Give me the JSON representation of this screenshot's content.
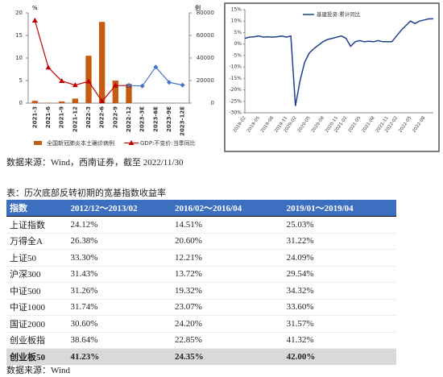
{
  "chart_data": [
    {
      "type": "bar-line",
      "ylabel": "%",
      "y2label": "例",
      "categories": [
        "2021-3",
        "2021-6",
        "2021-9",
        "2021-12",
        "2022-3",
        "2022-6",
        "2022-9",
        "2022-12",
        "2023-3E",
        "2023-6E",
        "2023-9E",
        "2023-12E"
      ],
      "ylim": [
        0,
        20
      ],
      "yticks": [
        0,
        5,
        10,
        15,
        20
      ],
      "y2lim": [
        0,
        80000
      ],
      "y2ticks": [
        0,
        20000,
        40000,
        60000,
        80000
      ],
      "series": [
        {
          "name": "全国新冠肺炎本土确诊病例",
          "color": "#c55a11",
          "kind": "bar",
          "axis": "y2",
          "values": [
            2000,
            300,
            1500,
            4000,
            42000,
            72000,
            20000,
            17000,
            null,
            null,
            null,
            null
          ]
        },
        {
          "name": "GDP:不变价:当季同比",
          "color": "#c00000",
          "kind": "line",
          "marker": "triangle",
          "values": [
            18.3,
            7.9,
            4.9,
            4.0,
            4.8,
            0.4,
            3.9,
            3.9,
            null,
            null,
            null,
            null
          ]
        },
        {
          "color": "#4472c4",
          "kind": "line",
          "marker": "diamond",
          "values": [
            null,
            null,
            null,
            null,
            null,
            null,
            null,
            3.9,
            3.8,
            8.0,
            4.6,
            4.0
          ]
        }
      ]
    },
    {
      "type": "line",
      "categories": [
        "2019-02",
        null,
        null,
        "2019-05",
        null,
        null,
        "2019-08",
        null,
        null,
        "2019-11",
        null,
        "2020-02",
        null,
        null,
        "2020-05",
        null,
        null,
        "2020-08",
        null,
        null,
        "2020-11",
        null,
        "2021-02",
        null,
        null,
        "2021-05",
        null,
        null,
        "2021-08",
        null,
        null,
        "2021-11",
        null,
        "2022-02",
        null,
        null,
        "2022-05",
        null,
        null,
        "2022-08",
        null,
        null
      ],
      "ylim": [
        -30,
        15
      ],
      "yticks": [
        {
          "value": -30,
          "label": "-30%"
        },
        {
          "value": -25,
          "label": "-25%"
        },
        {
          "value": -20,
          "label": "-20%"
        },
        {
          "value": -15,
          "label": "-15%"
        },
        {
          "value": -10,
          "label": "-10%"
        },
        {
          "value": -5,
          "label": "-5%"
        },
        {
          "value": 0,
          "label": "0%"
        },
        {
          "value": 5,
          "label": "5%"
        },
        {
          "value": 10,
          "label": "10%"
        },
        {
          "value": 15,
          "label": "15%"
        }
      ],
      "series": [
        {
          "name": "基建投资:累计同比",
          "color": "#1f3f8f",
          "values": [
            2.5,
            3.0,
            3.2,
            3.5,
            3.0,
            3.2,
            3.0,
            3.2,
            3.5,
            3.0,
            3.5,
            -27,
            -16,
            -8,
            -4,
            -2,
            -0.5,
            1,
            2,
            2.5,
            3,
            3.5,
            2.5,
            -1,
            1,
            1.5,
            1,
            1.2,
            1,
            1.5,
            1,
            1,
            1,
            3.5,
            6,
            8,
            10,
            9,
            10,
            10.5,
            11,
            11
          ]
        }
      ]
    }
  ],
  "source1": "数据来源：Wind，西南证券，截至 2022/11/30",
  "caption": "表：历次底部反转初期的宽基指数收益率",
  "table": {
    "header": [
      "指数",
      "2012/12～2013/02",
      "2016/02～2016/04",
      "2019/01～2019/04"
    ],
    "rows": [
      [
        "上证指数",
        "24.12%",
        "14.51%",
        "25.03%"
      ],
      [
        "万得全A",
        "26.38%",
        "20.60%",
        "31.22%"
      ],
      [
        "上证50",
        "33.30%",
        "12.21%",
        "24.09%"
      ],
      [
        "沪深300",
        "31.43%",
        "13.72%",
        "29.54%"
      ],
      [
        "中证500",
        "31.26%",
        "19.32%",
        "34.32%"
      ],
      [
        "中证1000",
        "31.74%",
        "23.07%",
        "33.60%"
      ],
      [
        "国证2000",
        "30.60%",
        "24.20%",
        "31.57%"
      ],
      [
        "创业板指",
        "38.64%",
        "22.85%",
        "41.32%"
      ],
      [
        "创业板50",
        "41.23%",
        "24.35%",
        "42.00%"
      ]
    ]
  },
  "source2": "数据来源：Wind"
}
